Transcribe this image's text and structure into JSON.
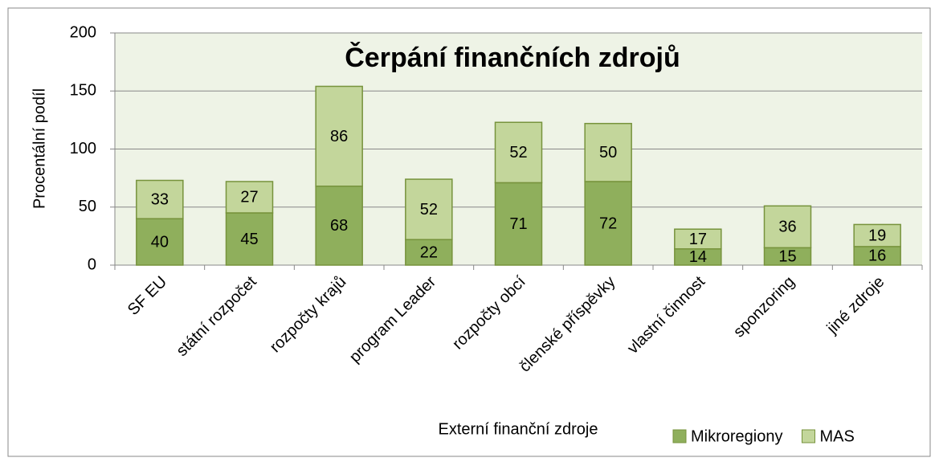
{
  "chart_data": {
    "type": "bar",
    "stacked": true,
    "title": "Čerpání finančních zdrojů",
    "x_label": "Externí finanční zdroje",
    "y_label": "Procentální podíl",
    "categories": [
      "SF EU",
      "státní rozpočet",
      "rozpočty krajů",
      "program Leader",
      "rozpočty obcí",
      "členské příspěvky",
      "vlastní činnost",
      "sponzoring",
      "jiné zdroje"
    ],
    "series": [
      {
        "name": "Mikroregiony",
        "color": "#8faf5c",
        "values": [
          40,
          45,
          68,
          22,
          71,
          72,
          14,
          15,
          16
        ]
      },
      {
        "name": "MAS",
        "color": "#c3d69b",
        "values": [
          33,
          27,
          86,
          52,
          52,
          50,
          17,
          36,
          19
        ]
      }
    ],
    "ylim": [
      0,
      200
    ],
    "yticks": [
      0,
      50,
      100,
      150,
      200
    ],
    "grid": true,
    "legend": "bottom-right"
  }
}
